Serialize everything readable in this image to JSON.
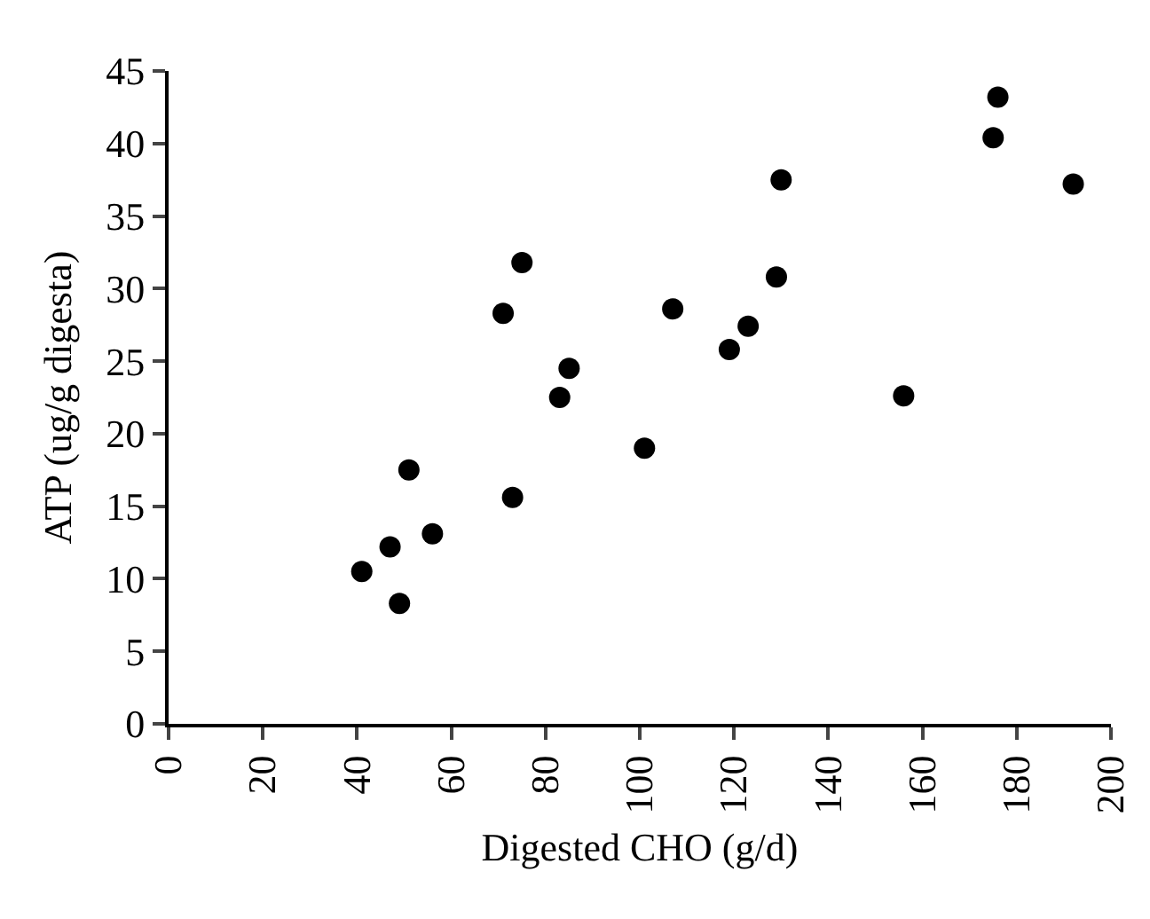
{
  "chart_data": {
    "type": "scatter",
    "xlabel": "Digested CHO (g/d)",
    "ylabel": "ATP (ug/g digesta)",
    "x": [
      41,
      47,
      49,
      51,
      56,
      71,
      73,
      75,
      83,
      85,
      101,
      107,
      119,
      123,
      129,
      130,
      156,
      175,
      176,
      192
    ],
    "values": [
      10.5,
      12.2,
      8.3,
      17.5,
      13.1,
      28.3,
      15.6,
      31.8,
      22.5,
      24.5,
      19,
      28.6,
      25.8,
      27.4,
      30.8,
      37.5,
      22.6,
      40.4,
      43.2,
      37.2
    ],
    "color": "#000000",
    "marker": "circle",
    "xlim": [
      0,
      200
    ],
    "ylim": [
      0,
      45
    ],
    "xticks": [
      0,
      20,
      40,
      60,
      80,
      100,
      120,
      140,
      160,
      180,
      200
    ],
    "yticks": [
      0,
      5,
      10,
      15,
      20,
      25,
      30,
      35,
      40,
      45
    ],
    "grid": false
  }
}
